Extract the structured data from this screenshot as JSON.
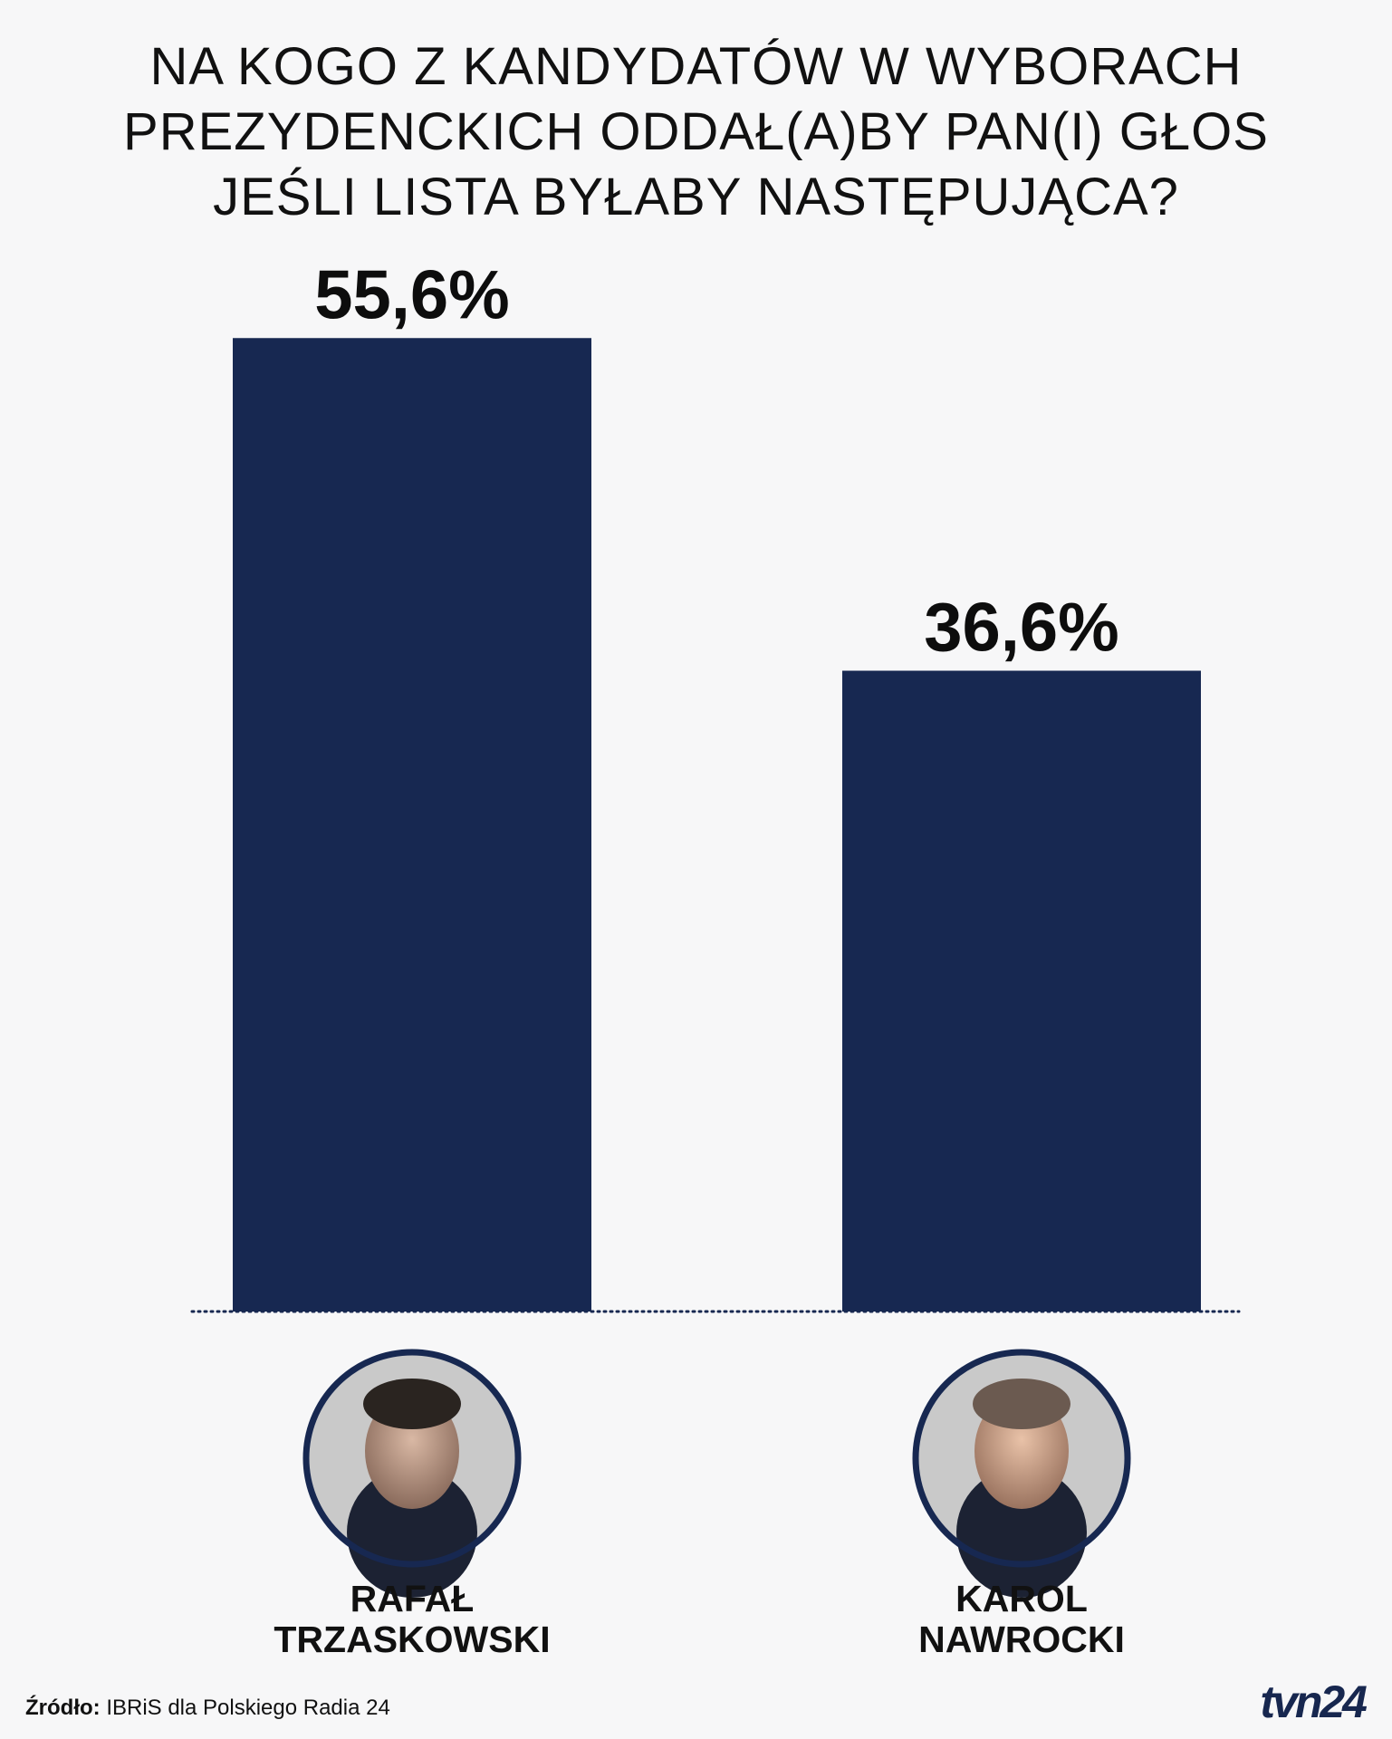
{
  "title_lines": [
    "NA KOGO Z KANDYDATÓW W WYBORACH",
    "PREZYDENCKICH ODDAŁ(A)BY PAN(I) GŁOS",
    "JEŚLI LISTA BYŁABY NASTĘPUJĄCA?"
  ],
  "chart_data": {
    "type": "bar",
    "title": "NA KOGO Z KANDYDATÓW W WYBORACH PREZYDENCKICH ODDAŁ(A)BY PAN(I) GŁOS JEŚLI LISTA BYŁABY NASTĘPUJĄCA?",
    "categories": [
      "RAFAŁ TRZASKOWSKI",
      "KAROL NAWROCKI"
    ],
    "category_lines": [
      [
        "RAFAŁ",
        "TRZASKOWSKI"
      ],
      [
        "KAROL",
        "NAWROCKI"
      ]
    ],
    "values": [
      55.6,
      36.6
    ],
    "value_labels": [
      "55,6%",
      "36,6%"
    ],
    "unit": "%",
    "ylim": [
      0,
      100
    ],
    "bar_color": "#172851",
    "grid": false,
    "legend": "none"
  },
  "source": {
    "label": "Źródło:",
    "text": "IBRiS dla Polskiego Radia 24"
  },
  "logo": "tvn24",
  "colors": {
    "background": "#f7f7f8",
    "bar": "#172851",
    "ring": "#172851"
  }
}
